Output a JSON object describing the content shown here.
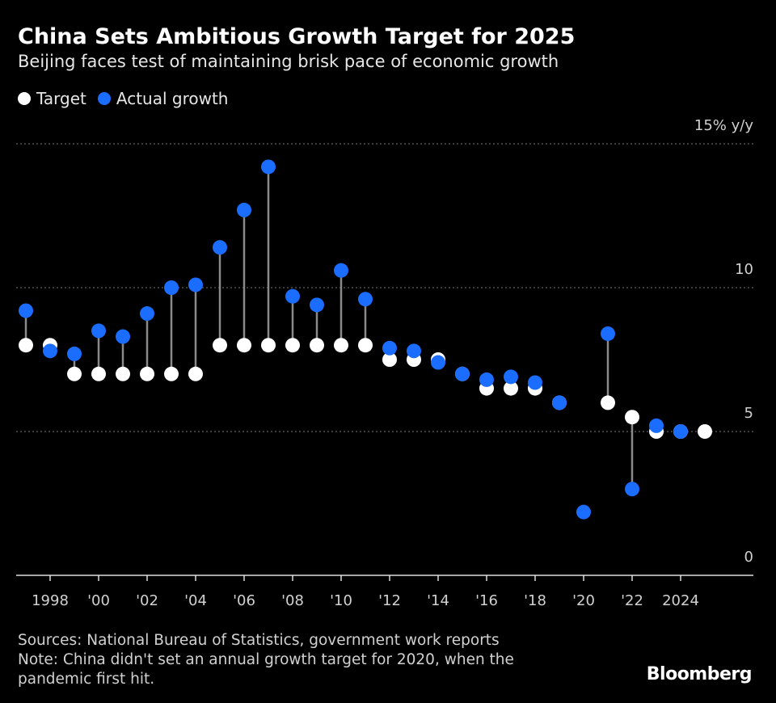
{
  "chart_data": {
    "type": "dot-stem",
    "title": "China Sets Ambitious Growth Target for 2025",
    "subtitle": "Beijing faces test of maintaining brisk pace of economic growth",
    "x": [
      1997,
      1998,
      1999,
      2000,
      2001,
      2002,
      2003,
      2004,
      2005,
      2006,
      2007,
      2008,
      2009,
      2010,
      2011,
      2012,
      2013,
      2014,
      2015,
      2016,
      2017,
      2018,
      2019,
      2020,
      2021,
      2022,
      2023,
      2024,
      2025
    ],
    "series": [
      {
        "name": "Target",
        "color": "#ffffff",
        "values": [
          8,
          8,
          7,
          7,
          7,
          7,
          7,
          7,
          8,
          8,
          8,
          8,
          8,
          8,
          8,
          7.5,
          7.5,
          7.5,
          7,
          6.5,
          6.5,
          6.5,
          6,
          null,
          6,
          5.5,
          5,
          5,
          5
        ]
      },
      {
        "name": "Actual growth",
        "color": "#1a6dff",
        "values": [
          9.2,
          7.8,
          7.7,
          8.5,
          8.3,
          9.1,
          10.0,
          10.1,
          11.4,
          12.7,
          14.2,
          9.7,
          9.4,
          10.6,
          9.6,
          7.9,
          7.8,
          7.4,
          7.0,
          6.8,
          6.9,
          6.7,
          6.0,
          2.2,
          8.4,
          3.0,
          5.2,
          5.0,
          null
        ]
      }
    ],
    "xlim": [
      1996.6,
      2027
    ],
    "xticks": [
      1998,
      {
        "value": 2000,
        "label": "'00"
      },
      {
        "value": 2002,
        "label": "'02"
      },
      {
        "value": 2004,
        "label": "'04"
      },
      {
        "value": 2006,
        "label": "'06"
      },
      {
        "value": 2008,
        "label": "'08"
      },
      {
        "value": 2010,
        "label": "'10"
      },
      {
        "value": 2012,
        "label": "'12"
      },
      {
        "value": 2014,
        "label": "'14"
      },
      {
        "value": 2016,
        "label": "'16"
      },
      {
        "value": 2018,
        "label": "'18"
      },
      {
        "value": 2020,
        "label": "'20"
      },
      {
        "value": 2022,
        "label": "'22"
      },
      2024
    ],
    "ylim": [
      0,
      15
    ],
    "yticks": [
      0,
      5,
      10,
      {
        "value": 15,
        "label": "15% y/y"
      }
    ],
    "grid": true,
    "source": "Sources: National Bureau of Statistics, government work reports",
    "note": "Note: China didn't set an annual growth target for 2020, when the pandemic first hit.",
    "brand": "Bloomberg"
  }
}
